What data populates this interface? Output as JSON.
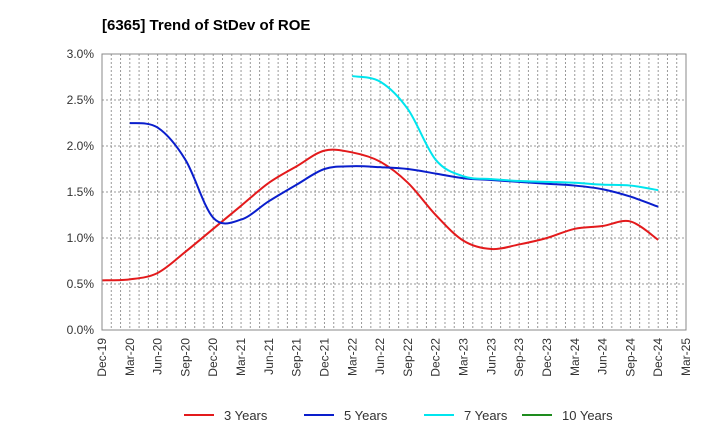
{
  "chart_data": {
    "type": "line",
    "title": "[6365]  Trend of StDev of ROE",
    "xlabel": "",
    "ylabel": "",
    "ylim": [
      0,
      3.0
    ],
    "yticks": [
      "0.0%",
      "0.5%",
      "1.0%",
      "1.5%",
      "2.0%",
      "2.5%",
      "3.0%"
    ],
    "x": [
      "Dec-19",
      "Mar-20",
      "Jun-20",
      "Sep-20",
      "Dec-20",
      "Mar-21",
      "Jun-21",
      "Sep-21",
      "Dec-21",
      "Mar-22",
      "Jun-22",
      "Sep-22",
      "Dec-22",
      "Mar-23",
      "Jun-23",
      "Sep-23",
      "Dec-23",
      "Mar-24",
      "Jun-24",
      "Sep-24",
      "Dec-24",
      "Mar-25"
    ],
    "grid": true,
    "legend_position": "bottom",
    "series": [
      {
        "name": "3 Years",
        "color": "#e31a1c",
        "values": [
          0.54,
          0.55,
          0.62,
          0.85,
          1.1,
          1.35,
          1.6,
          1.78,
          1.95,
          1.93,
          1.83,
          1.6,
          1.25,
          0.97,
          0.88,
          0.93,
          1.0,
          1.1,
          1.13,
          1.18,
          0.98,
          null
        ]
      },
      {
        "name": "5 Years",
        "color": "#0a1ecc",
        "values": [
          null,
          2.25,
          2.2,
          1.85,
          1.22,
          1.2,
          1.4,
          1.58,
          1.75,
          1.78,
          1.77,
          1.75,
          1.7,
          1.65,
          1.63,
          1.61,
          1.59,
          1.57,
          1.53,
          1.45,
          1.34,
          null
        ]
      },
      {
        "name": "7 Years",
        "color": "#00e5ee",
        "values": [
          null,
          null,
          null,
          null,
          null,
          null,
          null,
          null,
          null,
          2.76,
          2.7,
          2.4,
          1.85,
          1.67,
          1.64,
          1.62,
          1.61,
          1.6,
          1.58,
          1.57,
          1.52,
          null
        ]
      },
      {
        "name": "10 Years",
        "color": "#1e8c1e",
        "values": [
          null,
          null,
          null,
          null,
          null,
          null,
          null,
          null,
          null,
          null,
          null,
          null,
          null,
          null,
          null,
          null,
          null,
          null,
          null,
          null,
          null,
          null
        ]
      }
    ]
  }
}
